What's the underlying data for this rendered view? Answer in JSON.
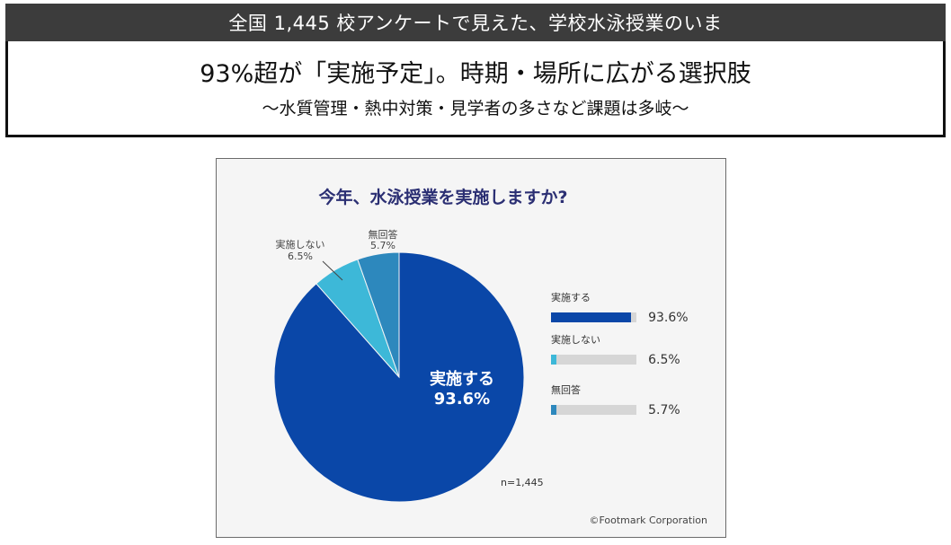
{
  "banner": {
    "text": "全国 1,445 校アンケートで見えた、学校水泳授業のいま"
  },
  "headline": {
    "main": "93%超が「実施予定」。時期・場所に広がる選択肢",
    "sub": "〜水質管理・熱中対策・見学者の多さなど課題は多岐〜"
  },
  "chart_data": {
    "type": "pie",
    "title": "今年、水泳授業を実施しますか?",
    "sample_label": "n=1,445",
    "copyright": "©Footmark Corporation",
    "slices": [
      {
        "name": "実施する",
        "value": 93.6,
        "label": "93.6%",
        "color": "#0a47a8"
      },
      {
        "name": "実施しない",
        "value": 6.5,
        "label": "6.5%",
        "color": "#3db8d8"
      },
      {
        "name": "無回答",
        "value": 5.7,
        "label": "5.7%",
        "color": "#2d88bd"
      }
    ],
    "legend_placement": "right"
  }
}
